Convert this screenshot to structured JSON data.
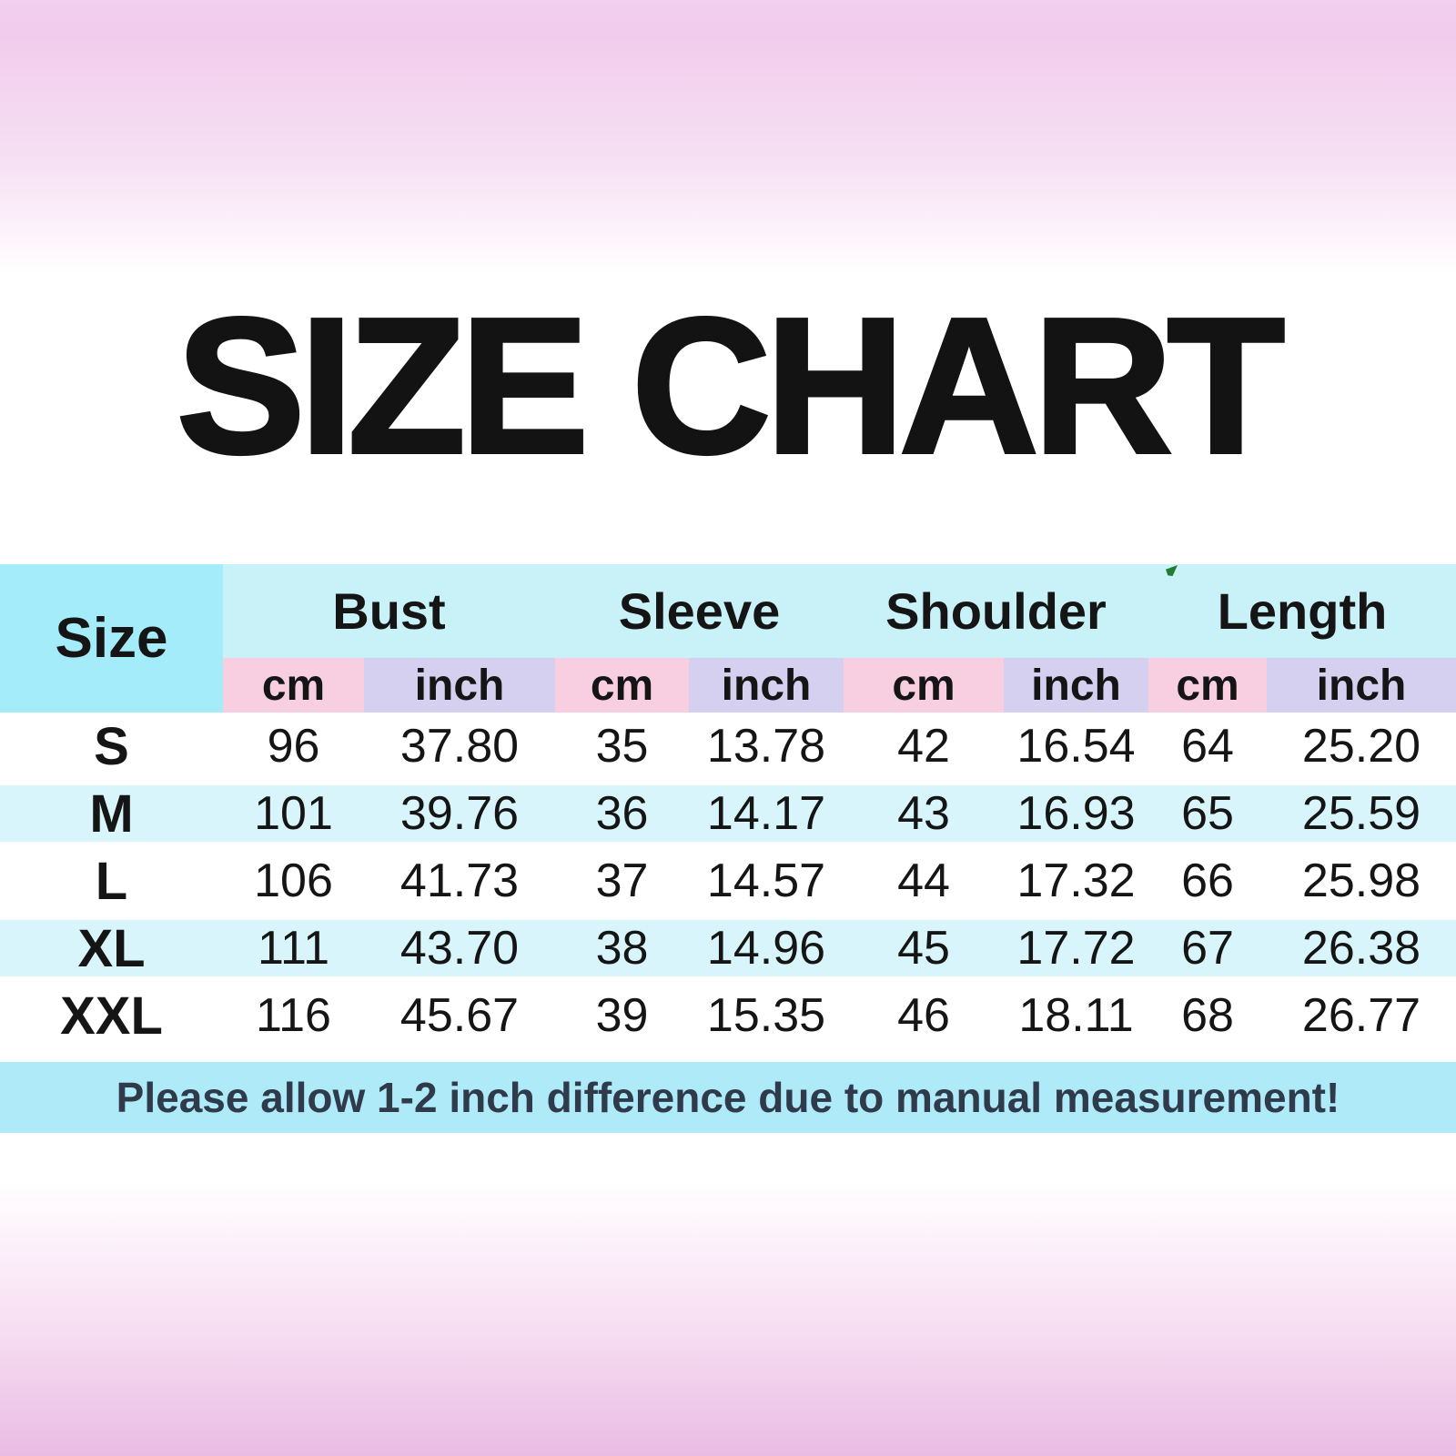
{
  "page_title": "SIZE CHART",
  "table": {
    "corner_header": "Size",
    "group_headers": [
      "Bust",
      "Sleeve",
      "Shoulder",
      "Length"
    ],
    "unit_headers": {
      "cm": "cm",
      "inch": "inch"
    },
    "rows": [
      {
        "size": "S",
        "bust_cm": "96",
        "bust_inch": "37.80",
        "sleeve_cm": "35",
        "sleeve_inch": "13.78",
        "shoulder_cm": "42",
        "shoulder_inch": "16.54",
        "length_cm": "64",
        "length_inch": "25.20"
      },
      {
        "size": "M",
        "bust_cm": "101",
        "bust_inch": "39.76",
        "sleeve_cm": "36",
        "sleeve_inch": "14.17",
        "shoulder_cm": "43",
        "shoulder_inch": "16.93",
        "length_cm": "65",
        "length_inch": "25.59"
      },
      {
        "size": "L",
        "bust_cm": "106",
        "bust_inch": "41.73",
        "sleeve_cm": "37",
        "sleeve_inch": "14.57",
        "shoulder_cm": "44",
        "shoulder_inch": "17.32",
        "length_cm": "66",
        "length_inch": "25.98"
      },
      {
        "size": "XL",
        "bust_cm": "111",
        "bust_inch": "43.70",
        "sleeve_cm": "38",
        "sleeve_inch": "14.96",
        "shoulder_cm": "45",
        "shoulder_inch": "17.72",
        "length_cm": "67",
        "length_inch": "26.38"
      },
      {
        "size": "XXL",
        "bust_cm": "116",
        "bust_inch": "45.67",
        "sleeve_cm": "39",
        "sleeve_inch": "15.35",
        "shoulder_cm": "46",
        "shoulder_inch": "18.11",
        "length_cm": "68",
        "length_inch": "26.77"
      }
    ],
    "note": "Please allow 1-2 inch difference due to manual measurement!"
  },
  "chart_data": {
    "type": "table",
    "title": "SIZE CHART",
    "columns": [
      "Size",
      "Bust cm",
      "Bust inch",
      "Sleeve cm",
      "Sleeve inch",
      "Shoulder cm",
      "Shoulder inch",
      "Length cm",
      "Length inch"
    ],
    "rows": [
      [
        "S",
        96,
        37.8,
        35,
        13.78,
        42,
        16.54,
        64,
        25.2
      ],
      [
        "M",
        101,
        39.76,
        36,
        14.17,
        43,
        16.93,
        65,
        25.59
      ],
      [
        "L",
        106,
        41.73,
        37,
        14.57,
        44,
        17.32,
        66,
        25.98
      ],
      [
        "XL",
        111,
        43.7,
        38,
        14.96,
        45,
        17.72,
        67,
        26.38
      ],
      [
        "XXL",
        116,
        45.67,
        39,
        15.35,
        46,
        18.11,
        68,
        26.77
      ]
    ],
    "note": "Please allow 1-2 inch difference due to manual measurement!"
  },
  "colors": {
    "size_column_bg": "#a5ecfa",
    "group_header_bg": "#c9f1f8",
    "cm_header_bg": "#f8cfe0",
    "inch_header_bg": "#d5d0f0",
    "alt_row_bg": "#d7f5fb",
    "note_bar_bg": "#aeeaf7",
    "note_text": "#2f3a4b",
    "title_text": "#131313",
    "gradient_top": "#f2cfee",
    "gradient_bottom": "#e9bce3",
    "green_marker": "#1e7c34"
  }
}
